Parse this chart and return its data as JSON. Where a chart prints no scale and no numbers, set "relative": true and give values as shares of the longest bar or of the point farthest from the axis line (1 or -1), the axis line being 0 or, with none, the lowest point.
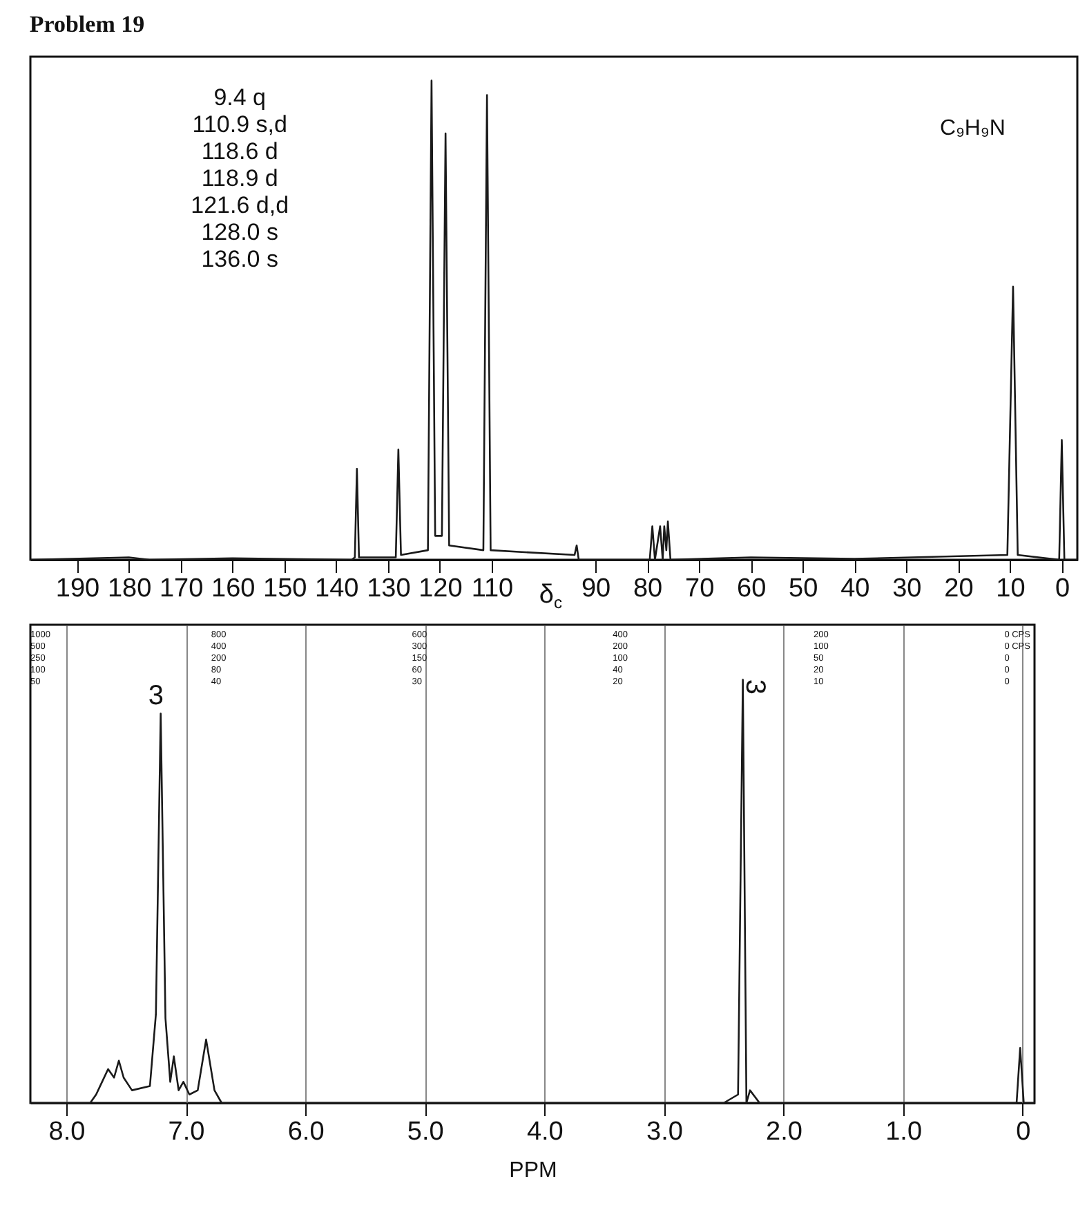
{
  "chart_data": [
    {
      "type": "line",
      "title": "Problem 19",
      "xlabel": "δ$_{c}$",
      "relative": true,
      "xlim": [
        199,
        -3
      ],
      "xticks": [
        190,
        180,
        170,
        160,
        150,
        140,
        130,
        120,
        110,
        90,
        80,
        70,
        60,
        50,
        40,
        30,
        20,
        10,
        0
      ],
      "annotations": [
        "9.4 q\n110.9 s,d\n118.6 d\n118.9 d\n121.6 d,d\n128.0 s\n136.0 s",
        "C₉H₉N"
      ],
      "series": [
        {
          "color": "#1a1a1a",
          "x": [
            199,
            180,
            176,
            160,
            137,
            136.4,
            136,
            135.6,
            128.5,
            128,
            127.5,
            122.3,
            121.6,
            120.9,
            119.6,
            118.9,
            118.2,
            111.6,
            110.9,
            110.2,
            94,
            93.6,
            93.2,
            79.5,
            79,
            78.5,
            77.5,
            77,
            76.7,
            76.3,
            76,
            75.5,
            60,
            40,
            10.5,
            9.4,
            8.5,
            0.5,
            0,
            -0.5,
            -3
          ],
          "values": [
            0,
            0.005,
            0,
            0.003,
            0,
            0.005,
            0.19,
            0.005,
            0.005,
            0.23,
            0.01,
            0.02,
            1,
            0.05,
            0.05,
            0.89,
            0.03,
            0.02,
            0.97,
            0.02,
            0.01,
            0.03,
            0,
            0,
            0.07,
            0,
            0.07,
            0,
            0.07,
            0.02,
            0.08,
            0,
            0.005,
            0.002,
            0.01,
            0.57,
            0.01,
            0,
            0.25,
            0,
            0
          ]
        }
      ]
    },
    {
      "type": "line",
      "xlabel": "PPM",
      "relative": true,
      "grid": "x",
      "xlim": [
        8.3,
        -0.1
      ],
      "xticks": [
        {
          "value": 8,
          "label": "8.0"
        },
        {
          "value": 7,
          "label": "7.0"
        },
        {
          "value": 6,
          "label": "6.0"
        },
        {
          "value": 5,
          "label": "5.0"
        },
        {
          "value": 4,
          "label": "4.0"
        },
        {
          "value": 3,
          "label": "3.0"
        },
        {
          "value": 2,
          "label": "2.0"
        },
        {
          "value": 1,
          "label": "1.0"
        },
        0
      ],
      "annotations": [
        "1000\n500\n250\n100\n50",
        "800\n400\n200\n80\n40",
        "600\n300\n150\n60\n30",
        "400\n200\n100\n40\n20",
        "200\n100\n50\n20\n10",
        "0 CPS\n0 CPS\n0\n0\n0",
        "3",
        "3"
      ],
      "series": [
        {
          "color": "#1a1a1a",
          "x": [
            8.3,
            7.8,
            7.75,
            7.7,
            7.65,
            7.6,
            7.56,
            7.52,
            7.45,
            7.3,
            7.25,
            7.21,
            7.17,
            7.13,
            7.1,
            7.06,
            7.02,
            6.97,
            6.9,
            6.83,
            6.76,
            6.7,
            4,
            2.5,
            2.38,
            2.34,
            2.31,
            2.28,
            2.2,
            0.05,
            0.02,
            -0.01,
            -0.1
          ],
          "values": [
            0,
            0,
            0.02,
            0.05,
            0.08,
            0.06,
            0.1,
            0.06,
            0.03,
            0.04,
            0.21,
            0.92,
            0.2,
            0.05,
            0.11,
            0.03,
            0.05,
            0.02,
            0.03,
            0.15,
            0.03,
            0,
            0,
            0,
            0.02,
            1,
            0,
            0.03,
            0,
            0,
            0.13,
            0,
            0
          ]
        }
      ]
    }
  ]
}
